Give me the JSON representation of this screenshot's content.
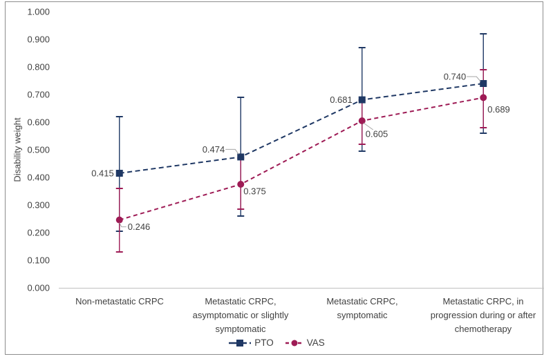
{
  "chart_data": {
    "type": "line",
    "title": "",
    "xlabel": "",
    "ylabel": "Disability weight",
    "ylim": [
      0.0,
      1.0
    ],
    "grid": false,
    "y_tick_labels": [
      "0.000",
      "0.100",
      "0.200",
      "0.300",
      "0.400",
      "0.500",
      "0.600",
      "0.700",
      "0.800",
      "0.900",
      "1.000"
    ],
    "categories": [
      "Non-metastatic CRPC",
      "Metastatic CRPC,\nasymptomatic or slightly\nsymptomatic",
      "Metastatic CRPC,\nsymptomatic",
      "Metastatic CRPC, in\nprogression during or after\nchemotherapy"
    ],
    "series": [
      {
        "name": "PTO",
        "marker": "square",
        "line_style": "dashed",
        "color": "#1F3864",
        "values": [
          0.415,
          0.474,
          0.681,
          0.74
        ],
        "value_labels": [
          "0.415",
          "0.474",
          "0.681",
          "0.740"
        ],
        "error_low": [
          0.205,
          0.26,
          0.495,
          0.56
        ],
        "error_high": [
          0.62,
          0.69,
          0.87,
          0.92
        ]
      },
      {
        "name": "VAS",
        "marker": "circle",
        "line_style": "dashed",
        "color": "#9E1B55",
        "values": [
          0.246,
          0.375,
          0.605,
          0.689
        ],
        "value_labels": [
          "0.246",
          "0.375",
          "0.605",
          "0.689"
        ],
        "error_low": [
          0.13,
          0.285,
          0.52,
          0.58
        ],
        "error_high": [
          0.36,
          0.47,
          0.68,
          0.79
        ]
      }
    ],
    "legend": {
      "position": "bottom-center",
      "entries": [
        "PTO",
        "VAS"
      ]
    },
    "styles": {
      "label_color": "#404040",
      "axis_line_color": "#BFBFBF",
      "leader_line_color": "#A6A6A6",
      "border_color": "#8C8C8C",
      "background": "#FFFFFF"
    }
  }
}
